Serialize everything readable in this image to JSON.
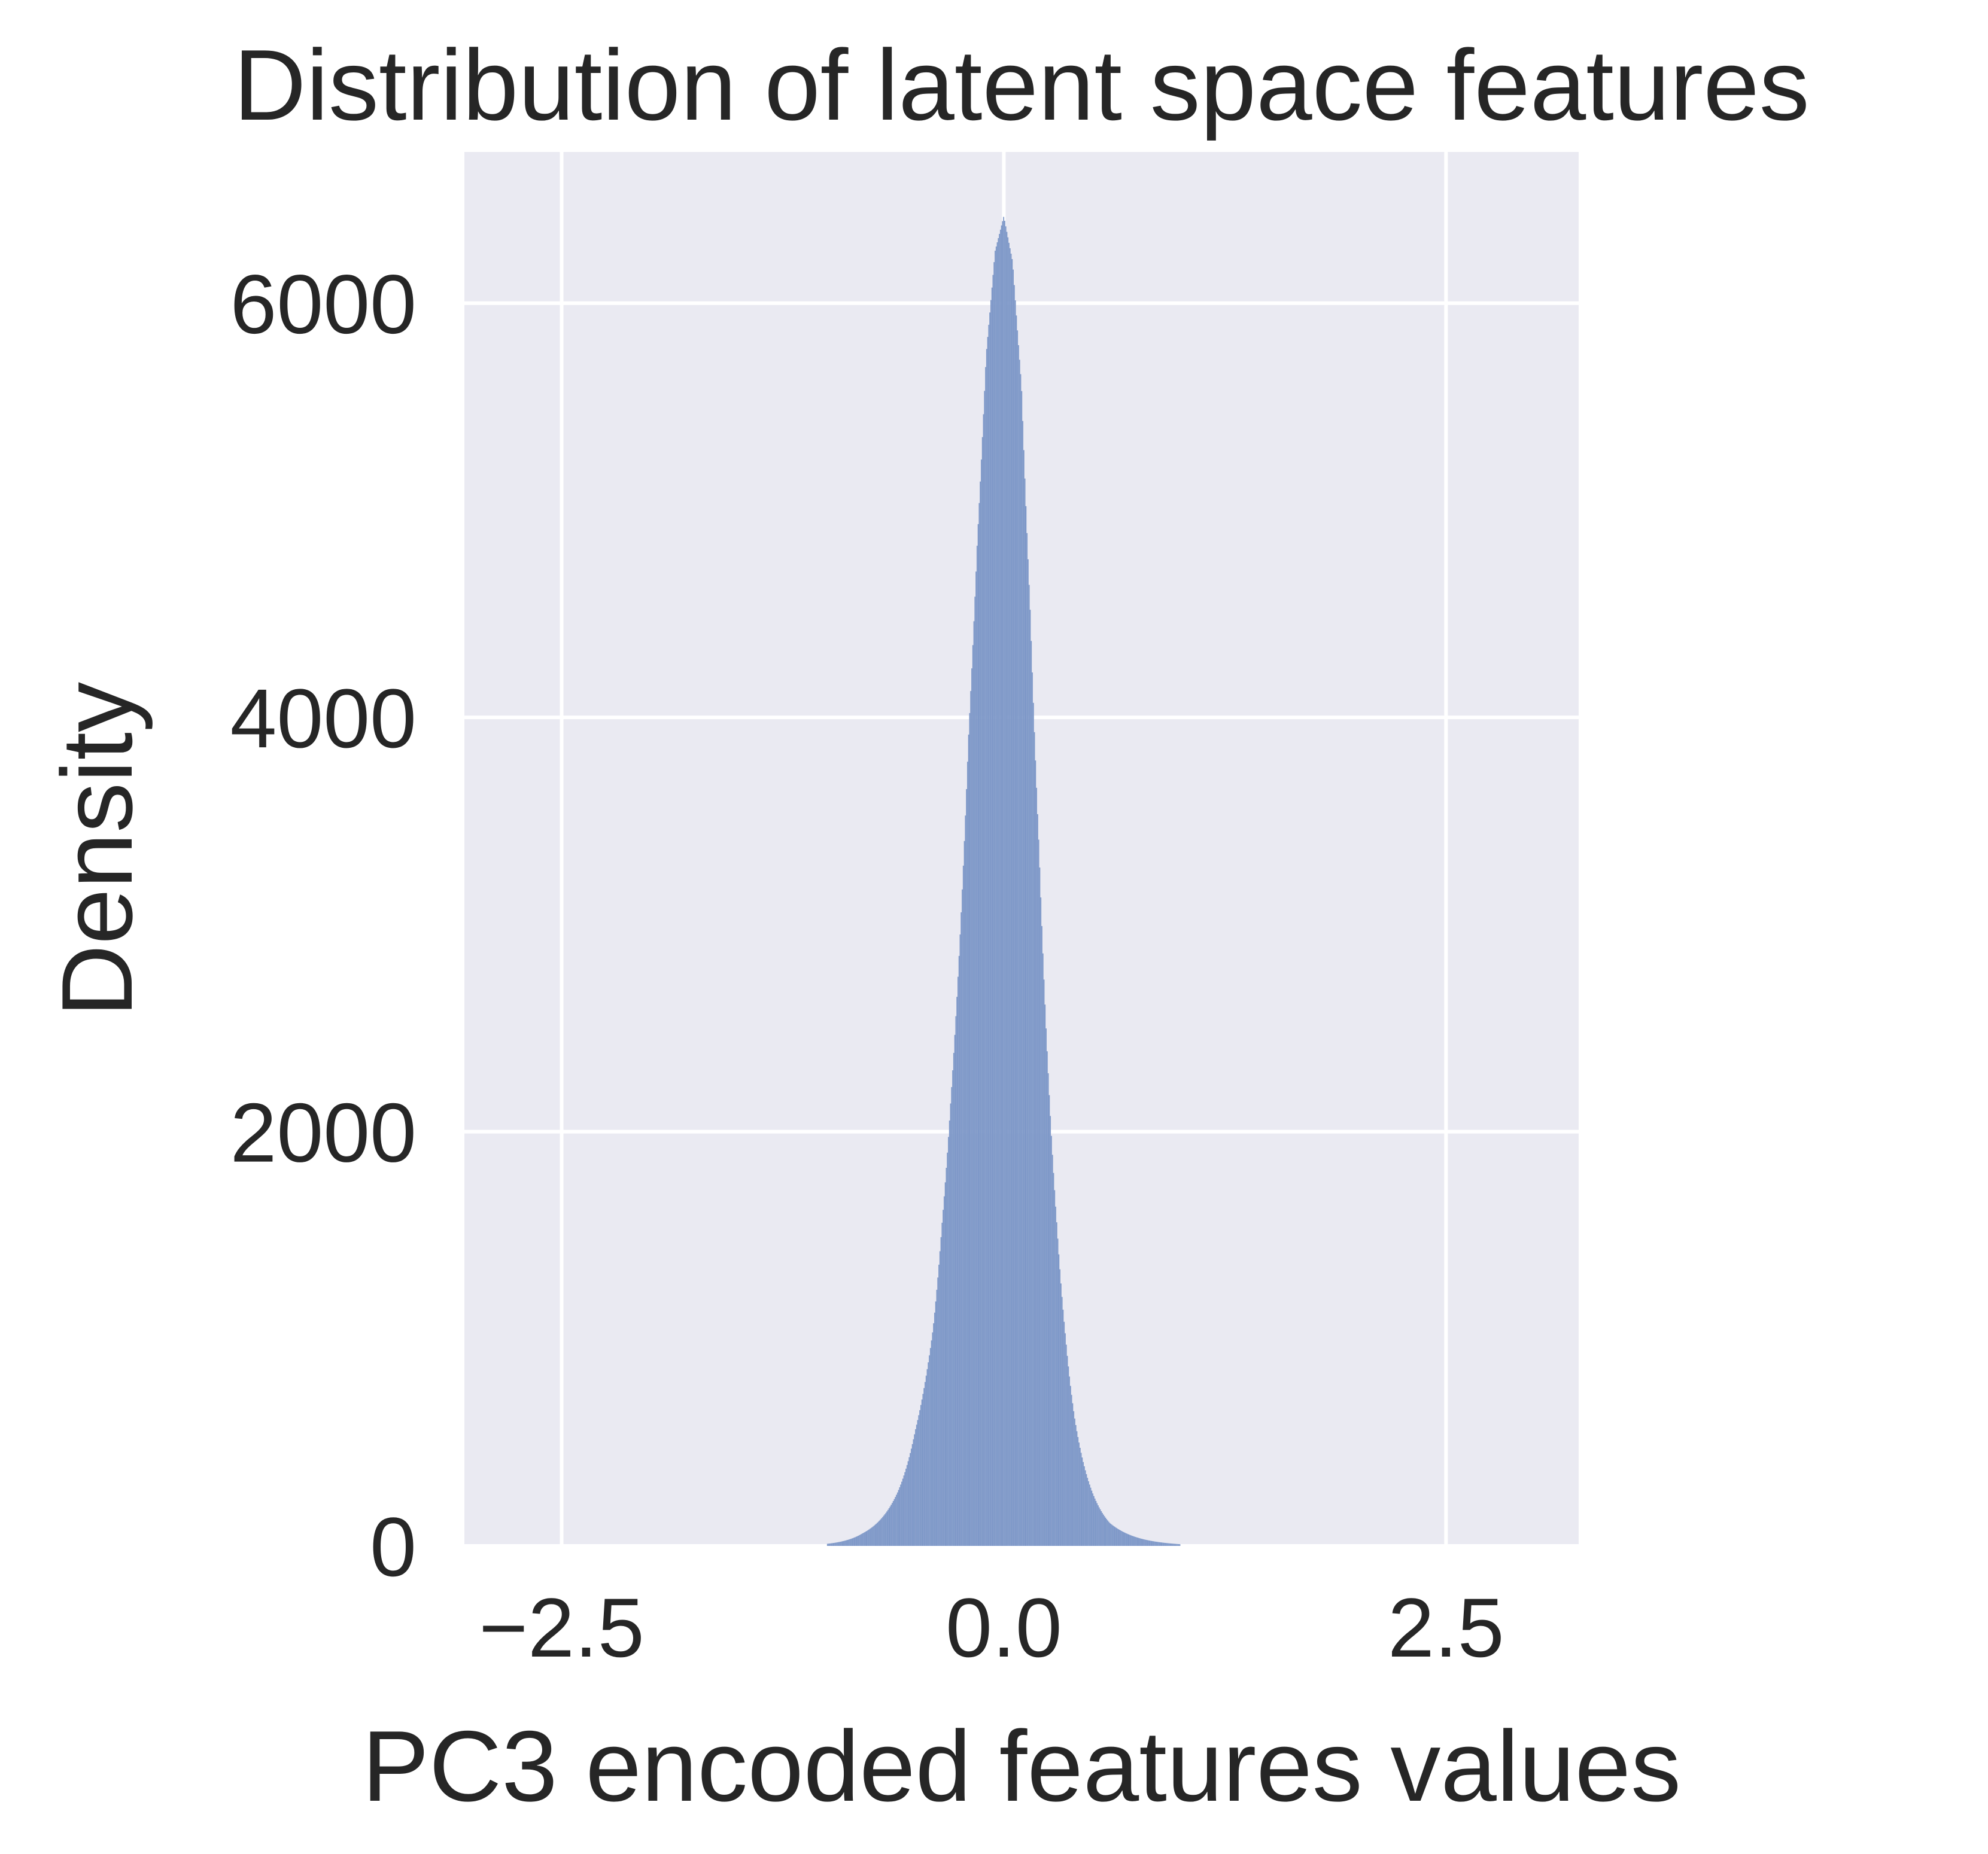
{
  "chart_data": {
    "type": "bar",
    "subtype": "histogram",
    "title": "Distribution of latent space features",
    "xlabel": "PC3 encoded features values",
    "ylabel": "Density",
    "xlim": [
      -3.05,
      3.25
    ],
    "ylim": [
      0,
      6730
    ],
    "xticks": [
      -2.5,
      0.0,
      2.5
    ],
    "xtick_labels": [
      "−2.5",
      "0.0",
      "2.5"
    ],
    "yticks": [
      0,
      2000,
      4000,
      6000
    ],
    "ytick_labels": [
      "0",
      "2000",
      "4000",
      "6000"
    ],
    "grid": true,
    "legend": "none",
    "colors": {
      "bars": "#7e98c8",
      "plot_background": "#eaeaf2",
      "grid": "#ffffff",
      "text": "#262626"
    },
    "peak": {
      "x": 0.0,
      "y": 6420
    },
    "x": [
      -1.0,
      -0.8,
      -0.6,
      -0.5,
      -0.4,
      -0.35,
      -0.3,
      -0.25,
      -0.2,
      -0.15,
      -0.1,
      -0.05,
      0.0,
      0.05,
      0.1,
      0.15,
      0.2,
      0.25,
      0.3,
      0.35,
      0.4,
      0.5,
      0.6,
      0.8,
      1.0
    ],
    "values": [
      10,
      60,
      260,
      560,
      1050,
      1550,
      2150,
      2900,
      3900,
      4850,
      5750,
      6250,
      6420,
      6200,
      5600,
      4500,
      3350,
      2300,
      1550,
      1000,
      620,
      260,
      110,
      30,
      8
    ]
  }
}
